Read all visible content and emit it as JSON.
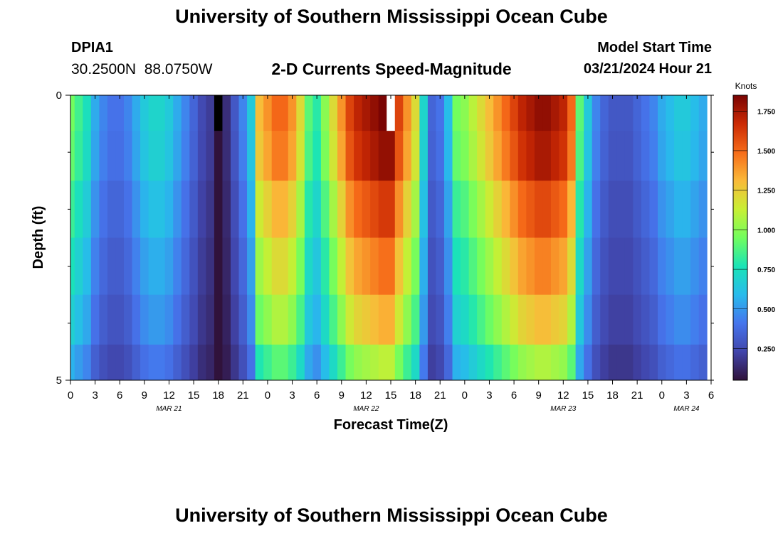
{
  "header": {
    "title": "University of Southern Mississippi Ocean Cube",
    "station_id": "DPIA1",
    "coords": "30.2500N  88.0750W",
    "plot_title": "2-D Currents Speed-Magnitude",
    "model_start_label": "Model Start Time",
    "model_start_value": "03/21/2024 Hour 21"
  },
  "footer": {
    "title": "University of Southern Mississippi Ocean Cube"
  },
  "chart_data": {
    "type": "heatmap",
    "title": "2-D Currents Speed-Magnitude",
    "xlabel": "Forecast Time(Z)",
    "ylabel": "Depth (ft)",
    "x_tick_labels": [
      "0",
      "3",
      "6",
      "9",
      "12",
      "15",
      "18",
      "21",
      "0",
      "3",
      "6",
      "9",
      "12",
      "15",
      "18",
      "21",
      "0",
      "3",
      "6",
      "9",
      "12",
      "15",
      "18",
      "21",
      "0",
      "3",
      "6"
    ],
    "x_hours": [
      0,
      3,
      6,
      9,
      12,
      15,
      18,
      21,
      24,
      27,
      30,
      33,
      36,
      39,
      42,
      45,
      48,
      51,
      54,
      57,
      60,
      63,
      66,
      69,
      72,
      75,
      78
    ],
    "x_range_hours": [
      0,
      78
    ],
    "date_labels": [
      {
        "text": "MAR 21",
        "hour": 12
      },
      {
        "text": "MAR 22",
        "hour": 36
      },
      {
        "text": "MAR 23",
        "hour": 60
      },
      {
        "text": "MAR 24",
        "hour": 75
      }
    ],
    "y_tick_labels": [
      "0",
      "5"
    ],
    "y_range_ft": [
      0,
      5
    ],
    "depth_rows_ft": [
      0.25,
      1.0,
      2.0,
      3.0,
      4.0,
      4.75
    ],
    "colorbar": {
      "label": "Knots",
      "range": [
        0.05,
        1.85
      ],
      "ticks": [
        "0.250",
        "0.500",
        "0.750",
        "1.000",
        "1.250",
        "1.500",
        "1.750"
      ],
      "tick_values": [
        0.25,
        0.5,
        0.75,
        1.0,
        1.25,
        1.5,
        1.75
      ]
    },
    "surface_speed_knots_by_hour": [
      0.95,
      0.85,
      0.75,
      0.55,
      0.45,
      0.4,
      0.4,
      0.45,
      0.55,
      0.65,
      0.7,
      0.7,
      0.65,
      0.55,
      0.45,
      0.35,
      0.25,
      0.2,
      0.05,
      0.15,
      0.3,
      0.45,
      0.65,
      1.3,
      1.4,
      1.5,
      1.5,
      1.4,
      1.2,
      0.9,
      0.8,
      1.0,
      1.2,
      1.4,
      1.6,
      1.7,
      1.75,
      1.8,
      1.85,
      1.85,
      1.6,
      1.4,
      1.2,
      0.7,
      0.35,
      0.4,
      0.6,
      0.95,
      1.0,
      1.1,
      1.2,
      1.3,
      1.4,
      1.5,
      1.6,
      1.7,
      1.75,
      1.8,
      1.8,
      1.75,
      1.7,
      1.5,
      0.9,
      0.65,
      0.45,
      0.35,
      0.3,
      0.3,
      0.3,
      0.35,
      0.4,
      0.45,
      0.55,
      0.6,
      0.65,
      0.65,
      0.6,
      0.55
    ],
    "depth_factor": [
      1.0,
      0.97,
      0.88,
      0.8,
      0.72,
      0.6
    ],
    "blank_cells": [
      {
        "hour": 18,
        "row": 0,
        "color": "#000000"
      },
      {
        "hour": 39,
        "row": 0,
        "color": "#ffffff"
      }
    ]
  }
}
